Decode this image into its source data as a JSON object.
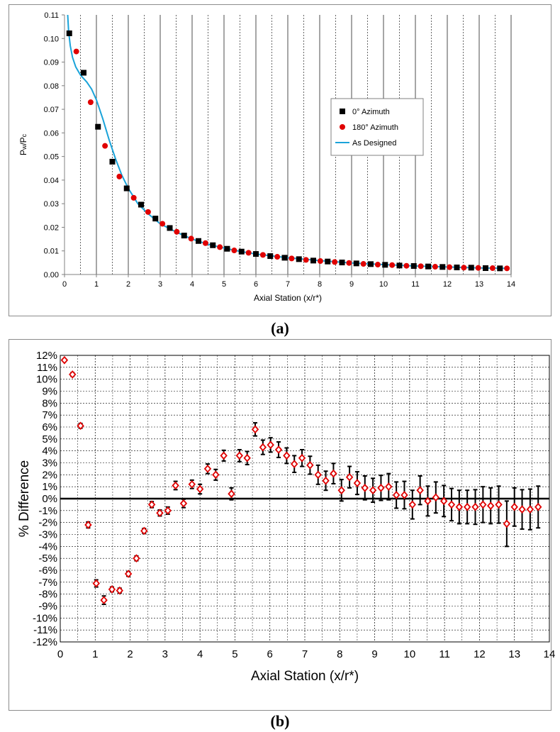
{
  "chart_data": [
    {
      "type": "scatter",
      "panel_caption": "(a)",
      "xlabel": "Axial Station (x/r*)",
      "ylabel": "Pw/Pc",
      "ylabel_main": "P",
      "ylabel_sub1": "w",
      "ylabel_mid": "/P",
      "ylabel_sub2": "c",
      "xlim": [
        0,
        14
      ],
      "ylim": [
        0,
        0.11
      ],
      "xticks": [
        "0",
        "1",
        "2",
        "3",
        "4",
        "5",
        "6",
        "7",
        "8",
        "9",
        "10",
        "11",
        "12",
        "13",
        "14"
      ],
      "yticks": [
        "0.00",
        "0.01",
        "0.02",
        "0.03",
        "0.04",
        "0.05",
        "0.06",
        "0.07",
        "0.08",
        "0.09",
        "0.10",
        "0.11"
      ],
      "grid": "vertical major and half-step dashed",
      "legend_position": "center-right",
      "series": [
        {
          "name": "0° Azimuth",
          "marker": "square",
          "color": "#000000",
          "points": [
            [
              0.15,
              0.1022
            ],
            [
              0.6,
              0.0855
            ],
            [
              1.05,
              0.0626
            ],
            [
              1.5,
              0.0478
            ],
            [
              1.95,
              0.0365
            ],
            [
              2.4,
              0.0296
            ],
            [
              2.85,
              0.0237
            ],
            [
              3.3,
              0.0197
            ],
            [
              3.75,
              0.0165
            ],
            [
              4.2,
              0.0142
            ],
            [
              4.65,
              0.0124
            ],
            [
              5.1,
              0.0109
            ],
            [
              5.55,
              0.0097
            ],
            [
              6.0,
              0.0087
            ],
            [
              6.45,
              0.0078
            ],
            [
              6.9,
              0.0071
            ],
            [
              7.35,
              0.0065
            ],
            [
              7.8,
              0.0059
            ],
            [
              8.25,
              0.0055
            ],
            [
              8.7,
              0.0051
            ],
            [
              9.15,
              0.0047
            ],
            [
              9.6,
              0.0044
            ],
            [
              10.05,
              0.0041
            ],
            [
              10.5,
              0.0038
            ],
            [
              10.95,
              0.0036
            ],
            [
              11.4,
              0.0034
            ],
            [
              11.85,
              0.0032
            ],
            [
              12.3,
              0.003
            ],
            [
              12.75,
              0.0029
            ],
            [
              13.2,
              0.0027
            ],
            [
              13.65,
              0.0026
            ]
          ]
        },
        {
          "name": "180° Azimuth",
          "marker": "circle",
          "color": "#e00000",
          "points": [
            [
              0.37,
              0.0945
            ],
            [
              0.82,
              0.073
            ],
            [
              1.27,
              0.0545
            ],
            [
              1.72,
              0.0415
            ],
            [
              2.17,
              0.0325
            ],
            [
              2.62,
              0.0265
            ],
            [
              3.07,
              0.0215
            ],
            [
              3.52,
              0.0181
            ],
            [
              3.97,
              0.0152
            ],
            [
              4.42,
              0.0133
            ],
            [
              4.87,
              0.0116
            ],
            [
              5.32,
              0.0102
            ],
            [
              5.77,
              0.0092
            ],
            [
              6.22,
              0.0083
            ],
            [
              6.67,
              0.0075
            ],
            [
              7.12,
              0.0068
            ],
            [
              7.57,
              0.0062
            ],
            [
              8.02,
              0.0057
            ],
            [
              8.47,
              0.0053
            ],
            [
              8.92,
              0.0049
            ],
            [
              9.37,
              0.0045
            ],
            [
              9.82,
              0.0042
            ],
            [
              10.27,
              0.004
            ],
            [
              10.72,
              0.0037
            ],
            [
              11.17,
              0.0035
            ],
            [
              11.62,
              0.0033
            ],
            [
              12.07,
              0.0031
            ],
            [
              12.52,
              0.0029
            ],
            [
              12.97,
              0.0028
            ],
            [
              13.42,
              0.0027
            ],
            [
              13.87,
              0.0026
            ]
          ]
        },
        {
          "name": "As Designed",
          "marker": "line",
          "color": "#1aa3d9",
          "points": [
            [
              0.1,
              0.11
            ],
            [
              0.13,
              0.103
            ],
            [
              0.18,
              0.097
            ],
            [
              0.25,
              0.092
            ],
            [
              0.35,
              0.088
            ],
            [
              0.5,
              0.0845
            ],
            [
              0.7,
              0.0815
            ],
            [
              0.85,
              0.0785
            ],
            [
              1.0,
              0.074
            ],
            [
              1.2,
              0.066
            ],
            [
              1.4,
              0.057
            ],
            [
              1.6,
              0.049
            ],
            [
              1.8,
              0.042
            ],
            [
              2.0,
              0.0365
            ],
            [
              2.3,
              0.03
            ],
            [
              2.6,
              0.026
            ],
            [
              3.0,
              0.0215
            ],
            [
              3.5,
              0.018
            ],
            [
              4.0,
              0.015
            ],
            [
              4.5,
              0.0128
            ],
            [
              5.0,
              0.0112
            ],
            [
              5.5,
              0.0098
            ],
            [
              6.0,
              0.0087
            ],
            [
              7.0,
              0.0071
            ],
            [
              8.0,
              0.0059
            ],
            [
              9.0,
              0.0049
            ],
            [
              10.0,
              0.0042
            ],
            [
              11.0,
              0.0036
            ],
            [
              12.0,
              0.0032
            ],
            [
              13.0,
              0.0028
            ],
            [
              13.8,
              0.0026
            ]
          ]
        }
      ]
    },
    {
      "type": "scatter",
      "panel_caption": "(b)",
      "xlabel": "Axial Station (x/r*)",
      "ylabel": "% Difference",
      "xlim": [
        0,
        14
      ],
      "ylim": [
        -12,
        12
      ],
      "xticks": [
        "0",
        "1",
        "2",
        "3",
        "4",
        "5",
        "6",
        "7",
        "8",
        "9",
        "10",
        "11",
        "12",
        "13",
        "14"
      ],
      "yticks": [
        "-12%",
        "-11%",
        "-10%",
        "-9%",
        "-8%",
        "-7%",
        "-6%",
        "-5%",
        "-4%",
        "-3%",
        "-2%",
        "-1%",
        "0%",
        "1%",
        "2%",
        "3%",
        "4%",
        "5%",
        "6%",
        "7%",
        "8%",
        "9%",
        "10%",
        "11%",
        "12%"
      ],
      "grid": "dashed major and half-step",
      "marker": "red open diamond with black error bar",
      "series": [
        {
          "name": "",
          "points": [
            {
              "x": 0.12,
              "y": 11.6,
              "err": 0.1
            },
            {
              "x": 0.35,
              "y": 10.4,
              "err": 0.15
            },
            {
              "x": 0.58,
              "y": 6.1,
              "err": 0.2
            },
            {
              "x": 0.8,
              "y": -2.2,
              "err": 0.25
            },
            {
              "x": 1.03,
              "y": -7.1,
              "err": 0.3
            },
            {
              "x": 1.25,
              "y": -8.5,
              "err": 0.35
            },
            {
              "x": 1.48,
              "y": -7.6,
              "err": 0.2
            },
            {
              "x": 1.7,
              "y": -7.7,
              "err": 0.2
            },
            {
              "x": 1.95,
              "y": -6.3,
              "err": 0.2
            },
            {
              "x": 2.18,
              "y": -5.0,
              "err": 0.2
            },
            {
              "x": 2.4,
              "y": -2.7,
              "err": 0.2
            },
            {
              "x": 2.62,
              "y": -0.5,
              "err": 0.25
            },
            {
              "x": 2.85,
              "y": -1.2,
              "err": 0.25
            },
            {
              "x": 3.08,
              "y": -1.0,
              "err": 0.3
            },
            {
              "x": 3.3,
              "y": 1.1,
              "err": 0.35
            },
            {
              "x": 3.53,
              "y": -0.4,
              "err": 0.35
            },
            {
              "x": 3.77,
              "y": 1.2,
              "err": 0.35
            },
            {
              "x": 4.0,
              "y": 0.8,
              "err": 0.4
            },
            {
              "x": 4.22,
              "y": 2.5,
              "err": 0.4
            },
            {
              "x": 4.45,
              "y": 2.0,
              "err": 0.45
            },
            {
              "x": 4.68,
              "y": 3.6,
              "err": 0.45
            },
            {
              "x": 4.9,
              "y": 0.4,
              "err": 0.5
            },
            {
              "x": 5.13,
              "y": 3.6,
              "err": 0.5
            },
            {
              "x": 5.35,
              "y": 3.4,
              "err": 0.55
            },
            {
              "x": 5.58,
              "y": 5.8,
              "err": 0.55
            },
            {
              "x": 5.8,
              "y": 4.3,
              "err": 0.6
            },
            {
              "x": 6.02,
              "y": 4.5,
              "err": 0.6
            },
            {
              "x": 6.25,
              "y": 4.1,
              "err": 0.65
            },
            {
              "x": 6.48,
              "y": 3.6,
              "err": 0.65
            },
            {
              "x": 6.7,
              "y": 2.9,
              "err": 0.7
            },
            {
              "x": 6.92,
              "y": 3.4,
              "err": 0.7
            },
            {
              "x": 7.15,
              "y": 2.8,
              "err": 0.75
            },
            {
              "x": 7.38,
              "y": 2.0,
              "err": 0.8
            },
            {
              "x": 7.6,
              "y": 1.5,
              "err": 0.8
            },
            {
              "x": 7.82,
              "y": 2.1,
              "err": 0.85
            },
            {
              "x": 8.05,
              "y": 0.7,
              "err": 0.9
            },
            {
              "x": 8.28,
              "y": 1.8,
              "err": 0.9
            },
            {
              "x": 8.5,
              "y": 1.3,
              "err": 0.95
            },
            {
              "x": 8.72,
              "y": 0.9,
              "err": 1.0
            },
            {
              "x": 8.95,
              "y": 0.7,
              "err": 1.0
            },
            {
              "x": 9.18,
              "y": 0.9,
              "err": 1.05
            },
            {
              "x": 9.4,
              "y": 1.0,
              "err": 1.1
            },
            {
              "x": 9.62,
              "y": 0.3,
              "err": 1.1
            },
            {
              "x": 9.85,
              "y": 0.3,
              "err": 1.15
            },
            {
              "x": 10.08,
              "y": -0.5,
              "err": 1.2
            },
            {
              "x": 10.3,
              "y": 0.7,
              "err": 1.2
            },
            {
              "x": 10.52,
              "y": -0.2,
              "err": 1.25
            },
            {
              "x": 10.75,
              "y": 0.1,
              "err": 1.3
            },
            {
              "x": 10.98,
              "y": -0.2,
              "err": 1.3
            },
            {
              "x": 11.2,
              "y": -0.5,
              "err": 1.35
            },
            {
              "x": 11.42,
              "y": -0.7,
              "err": 1.4
            },
            {
              "x": 11.65,
              "y": -0.7,
              "err": 1.4
            },
            {
              "x": 11.88,
              "y": -0.7,
              "err": 1.45
            },
            {
              "x": 12.1,
              "y": -0.5,
              "err": 1.5
            },
            {
              "x": 12.32,
              "y": -0.6,
              "err": 1.5
            },
            {
              "x": 12.55,
              "y": -0.5,
              "err": 1.55
            },
            {
              "x": 12.78,
              "y": -2.1,
              "err": 1.9
            },
            {
              "x": 13.0,
              "y": -0.7,
              "err": 1.6
            },
            {
              "x": 13.22,
              "y": -0.9,
              "err": 1.65
            },
            {
              "x": 13.45,
              "y": -0.9,
              "err": 1.7
            },
            {
              "x": 13.68,
              "y": -0.7,
              "err": 1.75
            }
          ]
        }
      ]
    }
  ]
}
